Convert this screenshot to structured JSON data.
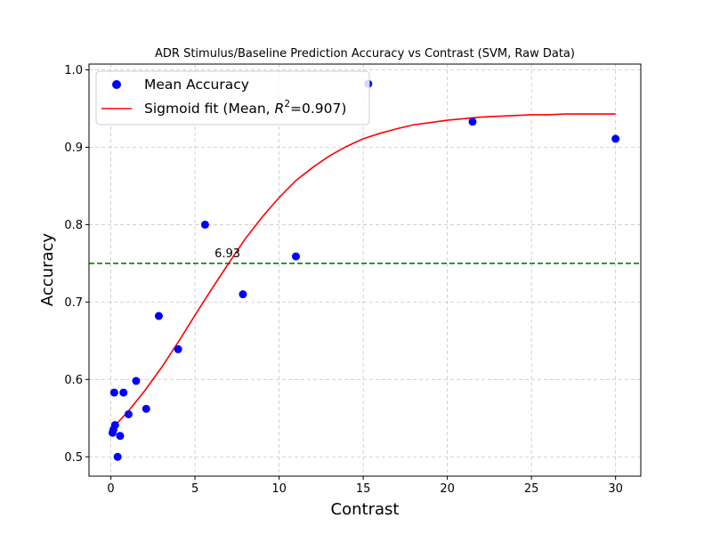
{
  "chart_data": {
    "type": "scatter",
    "title": "ADR Stimulus/Baseline Prediction Accuracy vs Contrast (SVM, Raw Data)",
    "xlabel": "Contrast",
    "ylabel": "Accuracy",
    "xlim": [
      -1.3,
      31.5
    ],
    "ylim": [
      0.475,
      1.0075
    ],
    "xticks": [
      0,
      5,
      10,
      15,
      20,
      25,
      30
    ],
    "yticks": [
      0.5,
      0.6,
      0.7,
      0.8,
      0.9,
      1.0
    ],
    "xtick_labels": [
      "0",
      "5",
      "10",
      "15",
      "20",
      "25",
      "30"
    ],
    "ytick_labels": [
      "0.5",
      "0.6",
      "0.7",
      "0.8",
      "0.9",
      "1.0"
    ],
    "grid": true,
    "legend_position": "upper-left",
    "series": [
      {
        "name": "Mean Accuracy",
        "kind": "scatter",
        "color": "#0000ff",
        "points": [
          [
            0.1,
            0.531
          ],
          [
            0.15,
            0.535
          ],
          [
            0.2,
            0.583
          ],
          [
            0.25,
            0.541
          ],
          [
            0.4,
            0.5
          ],
          [
            0.55,
            0.527
          ],
          [
            0.75,
            0.583
          ],
          [
            1.05,
            0.555
          ],
          [
            1.5,
            0.598
          ],
          [
            2.1,
            0.562
          ],
          [
            2.85,
            0.682
          ],
          [
            4.0,
            0.639
          ],
          [
            5.6,
            0.8
          ],
          [
            7.85,
            0.71
          ],
          [
            11.0,
            0.759
          ],
          [
            15.3,
            0.982
          ],
          [
            21.5,
            0.933
          ],
          [
            30.0,
            0.911
          ]
        ]
      },
      {
        "name": "Sigmoid fit (Mean, R²=0.907)",
        "name_prefix": "Sigmoid fit (Mean, ",
        "name_r": "R",
        "name_sup": "2",
        "name_suffix": "=0.907)",
        "kind": "line",
        "color": "#ff0000",
        "points": [
          [
            0.1,
            0.537
          ],
          [
            1,
            0.558
          ],
          [
            2,
            0.585
          ],
          [
            3,
            0.615
          ],
          [
            4,
            0.648
          ],
          [
            5,
            0.683
          ],
          [
            6,
            0.717
          ],
          [
            7,
            0.75
          ],
          [
            8,
            0.782
          ],
          [
            9,
            0.81
          ],
          [
            10,
            0.835
          ],
          [
            11,
            0.857
          ],
          [
            12,
            0.874
          ],
          [
            13,
            0.889
          ],
          [
            14,
            0.901
          ],
          [
            15,
            0.911
          ],
          [
            16,
            0.918
          ],
          [
            17,
            0.924
          ],
          [
            18,
            0.929
          ],
          [
            19,
            0.932
          ],
          [
            20,
            0.935
          ],
          [
            21,
            0.937
          ],
          [
            22,
            0.939
          ],
          [
            23,
            0.94
          ],
          [
            24,
            0.941
          ],
          [
            25,
            0.942
          ],
          [
            26,
            0.942
          ],
          [
            27,
            0.943
          ],
          [
            28,
            0.943
          ],
          [
            29,
            0.943
          ],
          [
            30,
            0.943
          ]
        ]
      }
    ],
    "reference_line": {
      "y": 0.75,
      "color": "#008000",
      "style": "dashed"
    },
    "annotation": {
      "text": "6.93",
      "x": 6.93,
      "y": 0.75
    }
  }
}
